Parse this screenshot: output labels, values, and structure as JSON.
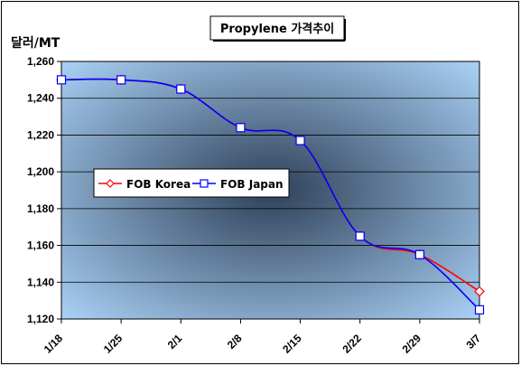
{
  "chart_data": {
    "type": "line",
    "title": "Propylene 가격추이",
    "ylabel": "달러/MT",
    "xlabel": "",
    "categories": [
      "1/18",
      "1/25",
      "2/1",
      "2/8",
      "2/15",
      "2/22",
      "2/29",
      "3/7"
    ],
    "ylim": [
      1120,
      1260
    ],
    "yticks": [
      1120,
      1140,
      1160,
      1180,
      1200,
      1220,
      1240,
      1260
    ],
    "ytick_labels": [
      "1,120",
      "1,140",
      "1,160",
      "1,180",
      "1,200",
      "1,220",
      "1,240",
      "1,260"
    ],
    "grid": "horizontal",
    "legend_position": "center-left",
    "series": [
      {
        "name": "FOB Korea",
        "color": "#ff0000",
        "marker": "diamond",
        "values": [
          1250,
          1250,
          1245,
          1224,
          1217,
          1165,
          1155,
          1135
        ]
      },
      {
        "name": "FOB Japan",
        "color": "#0000ff",
        "marker": "square",
        "values": [
          1250,
          1250,
          1245,
          1224,
          1217,
          1165,
          1155,
          1125
        ]
      }
    ],
    "colors": {
      "plot_bg_light": "#a9d0f5",
      "plot_bg_dark": "#2e4058",
      "grid": "#000000"
    }
  }
}
